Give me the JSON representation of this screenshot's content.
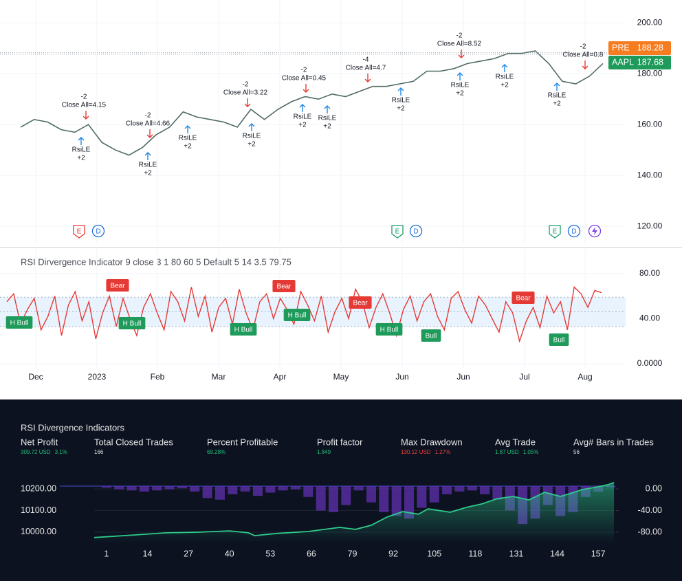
{
  "chart_data": [
    {
      "type": "line",
      "symbol": "AAPL",
      "last": 187.68,
      "pre_label": "PRE",
      "pre": 188.28,
      "color": "#4f6b62",
      "ylim": [
        113,
        209
      ],
      "yticks": [
        {
          "value": 200,
          "label": "200.00"
        },
        {
          "value": 180,
          "label": "180.00"
        },
        {
          "value": 160,
          "label": "160.00"
        },
        {
          "value": 140,
          "label": "140.00"
        },
        {
          "value": 120,
          "label": "120.00"
        }
      ],
      "values": [
        159,
        162,
        161,
        158,
        157,
        160,
        153,
        150,
        148,
        151,
        156,
        159,
        165,
        163,
        162,
        161,
        159,
        166,
        162,
        166,
        169,
        171,
        170,
        172,
        171,
        173,
        175,
        175,
        176,
        177,
        181,
        181,
        182,
        184,
        185,
        186,
        188,
        188,
        189,
        184,
        177,
        176,
        179,
        184
      ],
      "exits": [
        {
          "qty": "-2",
          "label": "Close All=4.15"
        },
        {
          "qty": "-2",
          "label": "Close All=4.66"
        },
        {
          "qty": "-2",
          "label": "Close All=3.22"
        },
        {
          "qty": "-2",
          "label": "Close All=0.45"
        },
        {
          "qty": "-4",
          "label": "Close All=4.7"
        },
        {
          "qty": "-2",
          "label": "Close All=8.52"
        },
        {
          "qty": "-2",
          "label": "Close All=0.8"
        }
      ],
      "entries": [
        {
          "label": "RsiLE",
          "qty": "+2"
        },
        {
          "label": "RsiLE",
          "qty": "+2"
        },
        {
          "label": "RsiLE",
          "qty": "+2"
        },
        {
          "label": "RsiLE",
          "qty": "+2"
        },
        {
          "label": "RsiLE",
          "qty": "+2"
        },
        {
          "label": "RsiLE",
          "qty": "+2"
        },
        {
          "label": "RsiLE",
          "qty": "+2"
        },
        {
          "label": "RsiLE",
          "qty": "+2"
        },
        {
          "label": "RsiLE",
          "qty": "+2"
        },
        {
          "label": "RsiLE",
          "qty": "+2"
        }
      ],
      "events": [
        "E",
        "D",
        "E",
        "D",
        "E",
        "D"
      ]
    },
    {
      "type": "line",
      "title": "RSI Dirvergence Indicator 9 close 3 1 80 60 5 Default 5 14 3.5 79.75",
      "color": "#e53935",
      "ylim": [
        -6.7,
        101.8
      ],
      "yticks": [
        {
          "value": 80,
          "label": "80.00"
        },
        {
          "value": 40,
          "label": "40.00"
        },
        {
          "value": 0,
          "label": "0.0000"
        }
      ],
      "bands": [
        59,
        46,
        33
      ],
      "values": [
        55,
        62,
        35,
        48,
        58,
        30,
        42,
        60,
        25,
        52,
        64,
        38,
        55,
        22,
        45,
        60,
        33,
        58,
        40,
        25,
        50,
        62,
        45,
        30,
        64,
        55,
        38,
        68,
        42,
        60,
        28,
        50,
        58,
        35,
        66,
        45,
        30,
        55,
        62,
        40,
        58,
        48,
        35,
        64,
        52,
        38,
        60,
        28,
        46,
        58,
        40,
        66,
        55,
        32,
        50,
        62,
        45,
        25,
        48,
        60,
        38,
        55,
        62,
        42,
        30,
        58,
        64,
        48,
        36,
        60,
        52,
        40,
        28,
        55,
        45,
        20,
        38,
        50,
        32,
        60,
        45,
        55,
        30,
        68,
        62,
        50,
        65,
        63
      ],
      "signals": [
        {
          "label": "H Bull",
          "color": "#1e9a5a"
        },
        {
          "label": "Bear",
          "color": "#e53935"
        },
        {
          "label": "H Bull",
          "color": "#1e9a5a"
        },
        {
          "label": "H Bull",
          "color": "#1e9a5a"
        },
        {
          "label": "Bear",
          "color": "#e53935"
        },
        {
          "label": "H Bull",
          "color": "#1e9a5a"
        },
        {
          "label": "Bear",
          "color": "#e53935"
        },
        {
          "label": "H Bull",
          "color": "#1e9a5a"
        },
        {
          "label": "Bull",
          "color": "#1e9a5a"
        },
        {
          "label": "Bear",
          "color": "#e53935"
        },
        {
          "label": "Bull",
          "color": "#1e9a5a"
        }
      ],
      "x_labels": [
        "Dec",
        "2023",
        "Feb",
        "Mar",
        "Apr",
        "May",
        "Jun",
        "Jun",
        "Jul",
        "Aug"
      ]
    },
    {
      "type": "equity",
      "title": "RSI Divergence Indicators",
      "x": [
        -2.9,
        10,
        20,
        30,
        40,
        46,
        48,
        55,
        65,
        75,
        80,
        85,
        90,
        95,
        100,
        103,
        110,
        115,
        120,
        125,
        130,
        135,
        140,
        145,
        148,
        152,
        157,
        160,
        162
      ],
      "values": [
        9975,
        9987,
        9997,
        10000,
        10006,
        9997,
        9984,
        9994,
        10003,
        10022,
        10013,
        10032,
        10070,
        10095,
        10083,
        10108,
        10092,
        10114,
        10130,
        10155,
        10165,
        10149,
        10184,
        10165,
        10178,
        10197,
        10210,
        10219,
        10229
      ],
      "color": "#2ecc8a",
      "drawdown": {
        "x": [
          1,
          5,
          9,
          13,
          17,
          21,
          25,
          29,
          33,
          37,
          41,
          45,
          49,
          53,
          57,
          61,
          65,
          69,
          73,
          77,
          81,
          85,
          89,
          93,
          97,
          101,
          105,
          109,
          113,
          117,
          121,
          125,
          129,
          133,
          137,
          141,
          145,
          149,
          153,
          157,
          161
        ],
        "values": [
          -3,
          -6,
          -8,
          -10,
          -8,
          -6,
          -4,
          -10,
          -22,
          -25,
          -15,
          -10,
          -18,
          -12,
          -8,
          -6,
          -20,
          -45,
          -48,
          -35,
          -8,
          -30,
          -48,
          -55,
          -60,
          -40,
          -30,
          -15,
          -10,
          -8,
          -15,
          -25,
          -45,
          -70,
          -60,
          -35,
          -55,
          -48,
          -20,
          -10,
          -2
        ],
        "color": "#5b2fa8",
        "axis": "y2"
      },
      "xlim": [
        -2.9,
        162.2
      ],
      "xticks": [
        1,
        14,
        27,
        40,
        53,
        66,
        79,
        92,
        105,
        118,
        131,
        144,
        157
      ],
      "ylim": [
        9949,
        10235
      ],
      "yticks": [
        {
          "value": 10200,
          "label": "10200.00"
        },
        {
          "value": 10100,
          "label": "10100.00"
        },
        {
          "value": 10000,
          "label": "10000.00"
        }
      ],
      "y2lim": [
        -100.3,
        14
      ],
      "y2ticks": [
        {
          "value": 0,
          "label": "0.00"
        },
        {
          "value": -40,
          "label": "-40.00"
        },
        {
          "value": -80,
          "label": "-80.00"
        }
      ]
    }
  ],
  "report": {
    "metrics": [
      {
        "name": "Net Profit",
        "values": [
          "309.72 USD",
          "3.1%"
        ],
        "color": "#22c07a"
      },
      {
        "name": "Total Closed Trades",
        "values": [
          "166"
        ],
        "color": "#e6e6e6"
      },
      {
        "name": "Percent Profitable",
        "values": [
          "69.28%"
        ],
        "color": "#22c07a"
      },
      {
        "name": "Profit factor",
        "values": [
          "1.849"
        ],
        "color": "#22c07a"
      },
      {
        "name": "Max Drawdown",
        "values": [
          "130.12 USD",
          "1.27%"
        ],
        "color": "#f0413a"
      },
      {
        "name": "Avg Trade",
        "values": [
          "1.87 USD",
          "1.05%"
        ],
        "color": "#22c07a"
      },
      {
        "name": "Avg# Bars in Trades",
        "values": [
          "56"
        ],
        "color": "#e6e6e6"
      }
    ]
  }
}
